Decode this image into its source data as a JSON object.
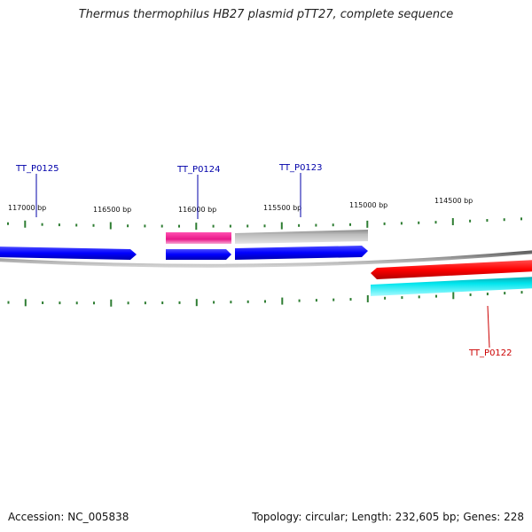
{
  "title": "Thermus thermophilus HB27 plasmid pTT27, complete sequence",
  "footer": {
    "accession": "Accession: NC_005838",
    "topology": "Topology: circular; Length: 232,605 bp; Genes: 228"
  },
  "colors": {
    "backbone": "#808080",
    "tick": "#2e7d32",
    "gene_label_forward": "#0000aa",
    "gene_label_reverse": "#cc0000",
    "gene_blue": "#0000ff",
    "gene_magenta": "#e8198a",
    "gene_gray": "#bdbdbd",
    "gene_red": "#ff0000",
    "gene_cyan": "#00e5ee"
  },
  "scale_labels": [
    "117000 bp",
    "116500 bp",
    "116000 bp",
    "115500 bp",
    "115000 bp",
    "114500 bp"
  ],
  "gene_labels": [
    {
      "name": "TT_P0125",
      "strand": "forward"
    },
    {
      "name": "TT_P0124",
      "strand": "forward"
    },
    {
      "name": "TT_P0123",
      "strand": "forward"
    },
    {
      "name": "TT_P0122",
      "strand": "reverse"
    }
  ]
}
